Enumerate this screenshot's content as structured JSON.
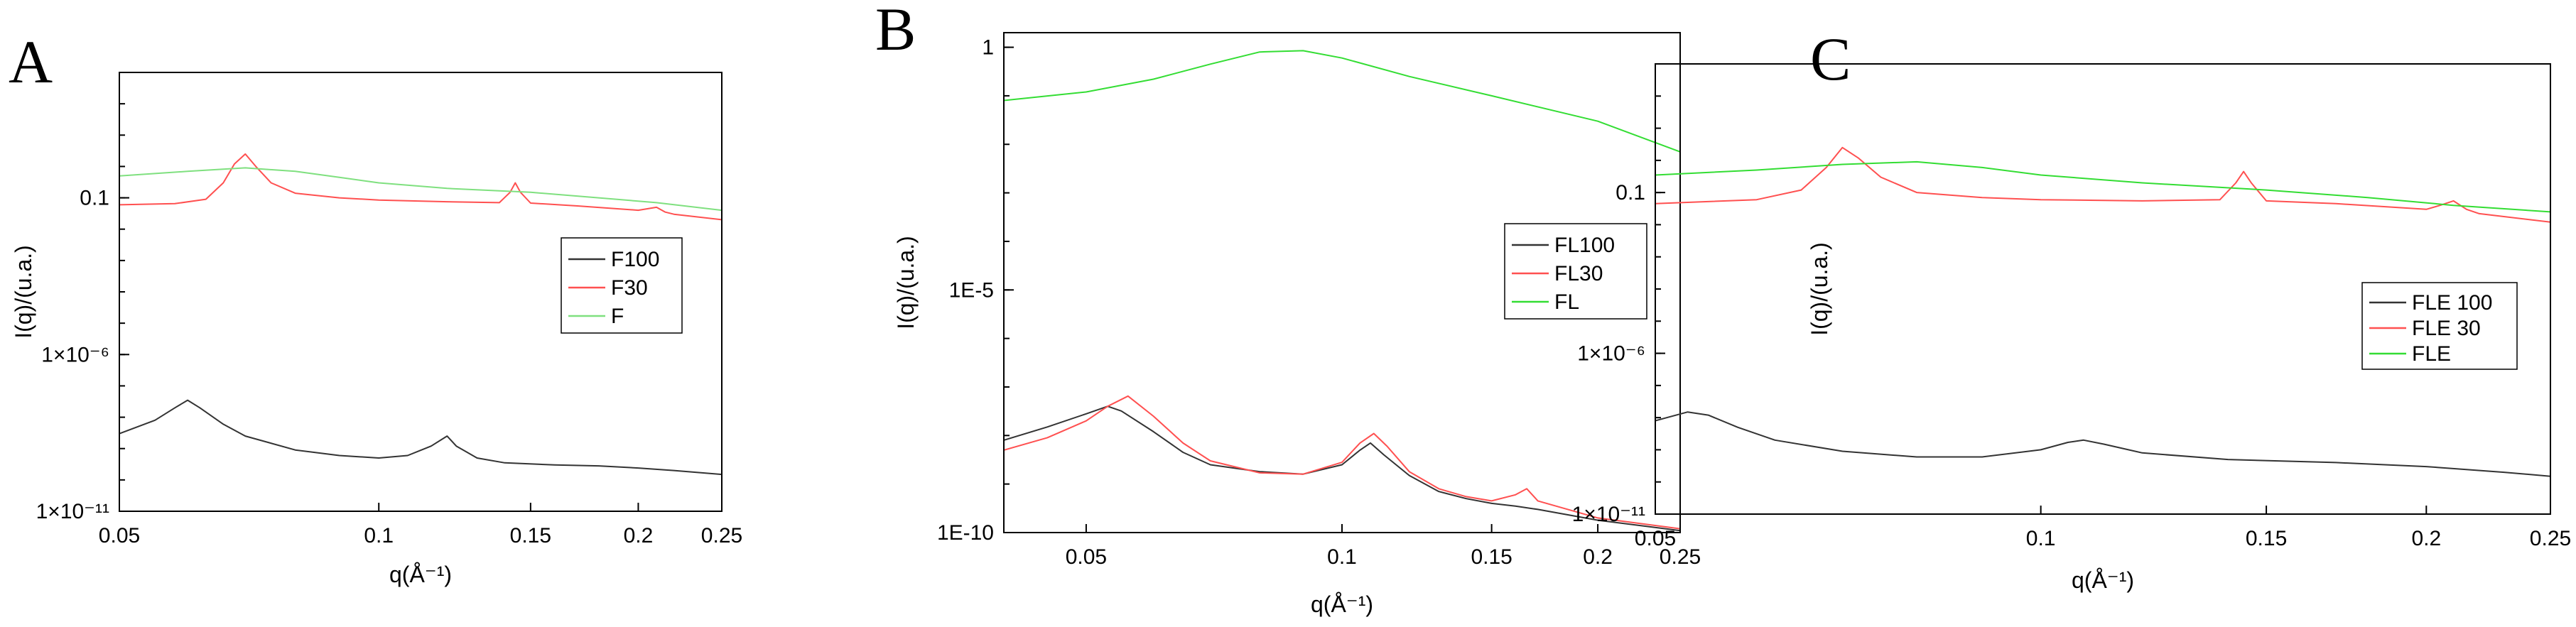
{
  "chart_data": [
    {
      "panel": "A",
      "type": "line",
      "xscale": "log",
      "yscale": "log",
      "xlim": [
        0.05,
        0.25
      ],
      "ylim": [
        1e-11,
        1000
      ],
      "xlabel": "q(Å⁻¹)",
      "ylabel": "I(q)/(u.a.)",
      "xticks": [
        {
          "v": 0.05,
          "label": "0.05"
        },
        {
          "v": 0.1,
          "label": "0.1"
        },
        {
          "v": 0.15,
          "label": "0.15"
        },
        {
          "v": 0.2,
          "label": "0.2"
        },
        {
          "v": 0.25,
          "label": "0.25"
        }
      ],
      "yticks": [
        {
          "v": 0.1,
          "label": "0.1"
        },
        {
          "v": 1e-06,
          "label": "1×10⁻⁶"
        },
        {
          "v": 1e-11,
          "label": "1×10⁻¹¹"
        }
      ],
      "legend": {
        "position": "center-right"
      },
      "series": [
        {
          "name": "F100",
          "color": "#333333",
          "x": [
            0.05,
            0.055,
            0.058,
            0.06,
            0.062,
            0.066,
            0.07,
            0.08,
            0.09,
            0.1,
            0.108,
            0.115,
            0.12,
            0.123,
            0.13,
            0.14,
            0.16,
            0.18,
            0.2,
            0.22,
            0.25
          ],
          "y": [
            3e-09,
            8e-09,
            2e-08,
            3.5e-08,
            2e-08,
            6e-09,
            2.5e-09,
            9e-10,
            6e-10,
            5e-10,
            6e-10,
            1.2e-09,
            2.5e-09,
            1.2e-09,
            5e-10,
            3.5e-10,
            3e-10,
            2.8e-10,
            2.4e-10,
            2e-10,
            1.5e-10
          ]
        },
        {
          "name": "F30",
          "color": "#ff5050",
          "x": [
            0.05,
            0.058,
            0.063,
            0.066,
            0.068,
            0.07,
            0.072,
            0.075,
            0.08,
            0.09,
            0.1,
            0.12,
            0.138,
            0.142,
            0.144,
            0.146,
            0.15,
            0.17,
            0.2,
            0.21,
            0.215,
            0.22,
            0.25
          ],
          "y": [
            0.06,
            0.065,
            0.09,
            0.3,
            1.2,
            2.5,
            1.0,
            0.3,
            0.14,
            0.1,
            0.085,
            0.075,
            0.07,
            0.15,
            0.3,
            0.15,
            0.068,
            0.055,
            0.04,
            0.05,
            0.035,
            0.03,
            0.02
          ]
        },
        {
          "name": "F",
          "color": "#7fe07f",
          "x": [
            0.05,
            0.06,
            0.07,
            0.08,
            0.09,
            0.1,
            0.12,
            0.15,
            0.18,
            0.21,
            0.25
          ],
          "y": [
            0.5,
            0.7,
            0.9,
            0.7,
            0.45,
            0.3,
            0.2,
            0.15,
            0.1,
            0.07,
            0.04
          ]
        }
      ]
    },
    {
      "panel": "B",
      "type": "line",
      "xscale": "log",
      "yscale": "log",
      "xlim": [
        0.04,
        0.25
      ],
      "ylim": [
        1e-10,
        2
      ],
      "xlabel": "q(Å⁻¹)",
      "ylabel": "I(q)/(u.a.)",
      "xticks": [
        {
          "v": 0.05,
          "label": "0.05"
        },
        {
          "v": 0.1,
          "label": "0.1"
        },
        {
          "v": 0.15,
          "label": "0.15"
        },
        {
          "v": 0.2,
          "label": "0.2"
        },
        {
          "v": 0.25,
          "label": "0.25"
        }
      ],
      "yticks": [
        {
          "v": 1,
          "label": "1"
        },
        {
          "v": 1e-05,
          "label": "1E-5"
        },
        {
          "v": 1e-10,
          "label": "1E-10"
        }
      ],
      "legend": {
        "position": "center-right"
      },
      "series": [
        {
          "name": "FL100",
          "color": "#333333",
          "x": [
            0.04,
            0.045,
            0.05,
            0.053,
            0.055,
            0.06,
            0.065,
            0.07,
            0.08,
            0.09,
            0.1,
            0.105,
            0.108,
            0.112,
            0.12,
            0.13,
            0.14,
            0.15,
            0.16,
            0.17,
            0.2,
            0.25
          ],
          "y": [
            8e-09,
            1.5e-08,
            2.8e-08,
            4e-08,
            3.2e-08,
            1.2e-08,
            4.5e-09,
            2.5e-09,
            1.8e-09,
            1.6e-09,
            2.5e-09,
            5e-09,
            7e-09,
            4e-09,
            1.5e-09,
            7e-10,
            5e-10,
            4e-10,
            3.5e-10,
            3e-10,
            1.8e-10,
            1.1e-10
          ]
        },
        {
          "name": "FL30",
          "color": "#ff5050",
          "x": [
            0.04,
            0.045,
            0.05,
            0.053,
            0.056,
            0.06,
            0.065,
            0.07,
            0.08,
            0.09,
            0.1,
            0.105,
            0.109,
            0.113,
            0.12,
            0.13,
            0.14,
            0.15,
            0.16,
            0.165,
            0.17,
            0.2,
            0.25
          ],
          "y": [
            5e-09,
            9e-09,
            2e-08,
            4e-08,
            6.5e-08,
            2.5e-08,
            7e-09,
            3e-09,
            1.7e-09,
            1.6e-09,
            2.8e-09,
            7e-09,
            1.1e-08,
            6e-09,
            1.8e-09,
            8e-10,
            5.5e-10,
            4.5e-10,
            6e-10,
            8e-10,
            4.5e-10,
            2e-10,
            1.2e-10
          ]
        },
        {
          "name": "FL",
          "color": "#33dd33",
          "x": [
            0.04,
            0.05,
            0.06,
            0.07,
            0.08,
            0.09,
            0.1,
            0.12,
            0.15,
            0.2,
            0.25
          ],
          "y": [
            0.08,
            0.12,
            0.22,
            0.45,
            0.8,
            0.85,
            0.6,
            0.25,
            0.1,
            0.03,
            0.007
          ]
        }
      ]
    },
    {
      "panel": "C",
      "type": "line",
      "xscale": "log",
      "yscale": "log",
      "xlim": [
        0.05,
        0.25
      ],
      "ylim": [
        1e-11,
        1000
      ],
      "xlabel": "q(Å⁻¹)",
      "ylabel": "I(q)/(u.a.)",
      "xticks": [
        {
          "v": 0.05,
          "label": "0.05"
        },
        {
          "v": 0.1,
          "label": "0.1"
        },
        {
          "v": 0.15,
          "label": "0.15"
        },
        {
          "v": 0.2,
          "label": "0.2"
        },
        {
          "v": 0.25,
          "label": "0.25"
        }
      ],
      "yticks": [
        {
          "v": 0.1,
          "label": "0.1"
        },
        {
          "v": 1e-06,
          "label": "1×10⁻⁶"
        },
        {
          "v": 1e-11,
          "label": "1×10⁻¹¹"
        }
      ],
      "legend": {
        "position": "center-right"
      },
      "series": [
        {
          "name": "FLE 100",
          "color": "#333333",
          "x": [
            0.05,
            0.053,
            0.055,
            0.058,
            0.062,
            0.07,
            0.08,
            0.09,
            0.1,
            0.105,
            0.108,
            0.112,
            0.12,
            0.14,
            0.17,
            0.2,
            0.23,
            0.25
          ],
          "y": [
            8e-09,
            1.5e-08,
            1.2e-08,
            5e-09,
            2e-09,
            9e-10,
            6e-10,
            6e-10,
            1e-09,
            1.7e-09,
            2e-09,
            1.5e-09,
            8e-10,
            5e-10,
            4e-10,
            3e-10,
            2e-10,
            1.5e-10
          ]
        },
        {
          "name": "FLE 30",
          "color": "#ff5050",
          "x": [
            0.05,
            0.06,
            0.065,
            0.068,
            0.07,
            0.072,
            0.075,
            0.08,
            0.09,
            0.1,
            0.12,
            0.138,
            0.142,
            0.144,
            0.146,
            0.15,
            0.17,
            0.2,
            0.205,
            0.21,
            0.215,
            0.22,
            0.25
          ],
          "y": [
            0.045,
            0.06,
            0.12,
            0.6,
            2.5,
            1.2,
            0.3,
            0.1,
            0.07,
            0.06,
            0.055,
            0.06,
            0.2,
            0.45,
            0.2,
            0.055,
            0.045,
            0.03,
            0.04,
            0.055,
            0.03,
            0.022,
            0.012
          ]
        },
        {
          "name": "FLE",
          "color": "#33dd33",
          "x": [
            0.05,
            0.06,
            0.07,
            0.08,
            0.09,
            0.1,
            0.12,
            0.15,
            0.18,
            0.21,
            0.25
          ],
          "y": [
            0.35,
            0.5,
            0.75,
            0.9,
            0.6,
            0.35,
            0.2,
            0.12,
            0.07,
            0.04,
            0.025
          ]
        }
      ]
    }
  ]
}
